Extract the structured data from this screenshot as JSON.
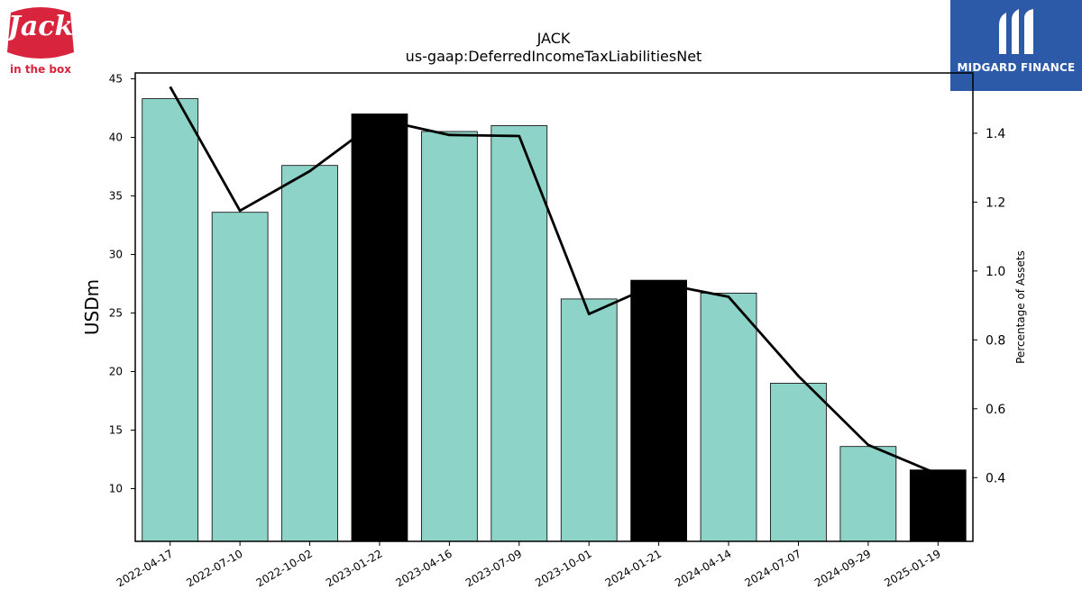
{
  "brands": {
    "left_logo_text": "in the box",
    "left_logo_word": "Jack",
    "right_logo_text": "MIDGARD FINANCE"
  },
  "chart_data": {
    "type": "bar",
    "title": "JACK",
    "subtitle": "us-gaap:DeferredIncomeTaxLiabilitiesNet",
    "ylabel": "USDm",
    "y2label": "Percentage of Assets",
    "categories": [
      "2022-04-17",
      "2022-07-10",
      "2022-10-02",
      "2023-01-22",
      "2023-04-16",
      "2023-07-09",
      "2023-10-01",
      "2024-01-21",
      "2024-04-14",
      "2024-07-07",
      "2024-09-29",
      "2025-01-19"
    ],
    "values": [
      43.3,
      33.6,
      37.6,
      42.0,
      40.5,
      41.0,
      26.2,
      27.8,
      26.7,
      19.0,
      13.6,
      11.6
    ],
    "bar_colors": [
      "#8dd3c7",
      "#8dd3c7",
      "#8dd3c7",
      "#000000",
      "#8dd3c7",
      "#8dd3c7",
      "#8dd3c7",
      "#000000",
      "#8dd3c7",
      "#8dd3c7",
      "#8dd3c7",
      "#000000"
    ],
    "line_series": {
      "name": "",
      "values": [
        1.535,
        1.175,
        1.29,
        1.44,
        1.395,
        1.392,
        0.875,
        0.965,
        0.925,
        0.695,
        0.495,
        0.41
      ],
      "color": "#000000"
    },
    "ylim": [
      5.5,
      45.5
    ],
    "y2lim": [
      0.215,
      1.575
    ],
    "yticks": [
      10,
      15,
      20,
      25,
      30,
      35,
      40,
      45
    ],
    "y2ticks": [
      0.4,
      0.6,
      0.8,
      1.0,
      1.2,
      1.4
    ],
    "y2tick_labels": [
      "0.4",
      "0.6",
      "0.8",
      "1.0",
      "1.2",
      "1.4"
    ],
    "grid": false
  }
}
